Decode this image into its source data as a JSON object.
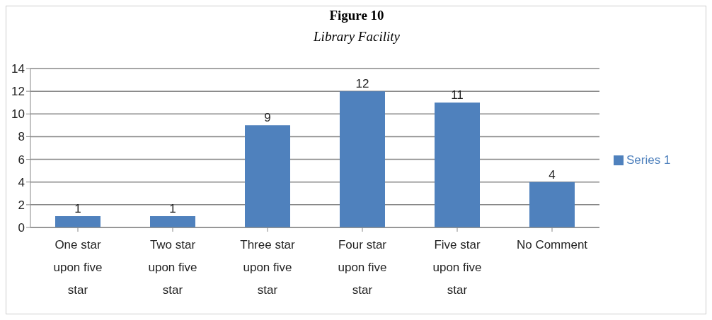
{
  "chart_data": {
    "type": "bar",
    "title": "Figure 10",
    "subtitle": "Library Facility",
    "categories": [
      "One star upon five star",
      "Two star upon five star",
      "Three star upon five star",
      "Four star upon five star",
      "Five star upon five star",
      "No Comment"
    ],
    "series": [
      {
        "name": "Series 1",
        "color": "#4f81bd",
        "values": [
          1,
          1,
          9,
          12,
          11,
          4
        ]
      }
    ],
    "ylim": [
      0,
      14
    ],
    "yticks": [
      0,
      2,
      4,
      6,
      8,
      10,
      12,
      14
    ],
    "grid": "y",
    "legend": "right",
    "data_labels": true
  }
}
